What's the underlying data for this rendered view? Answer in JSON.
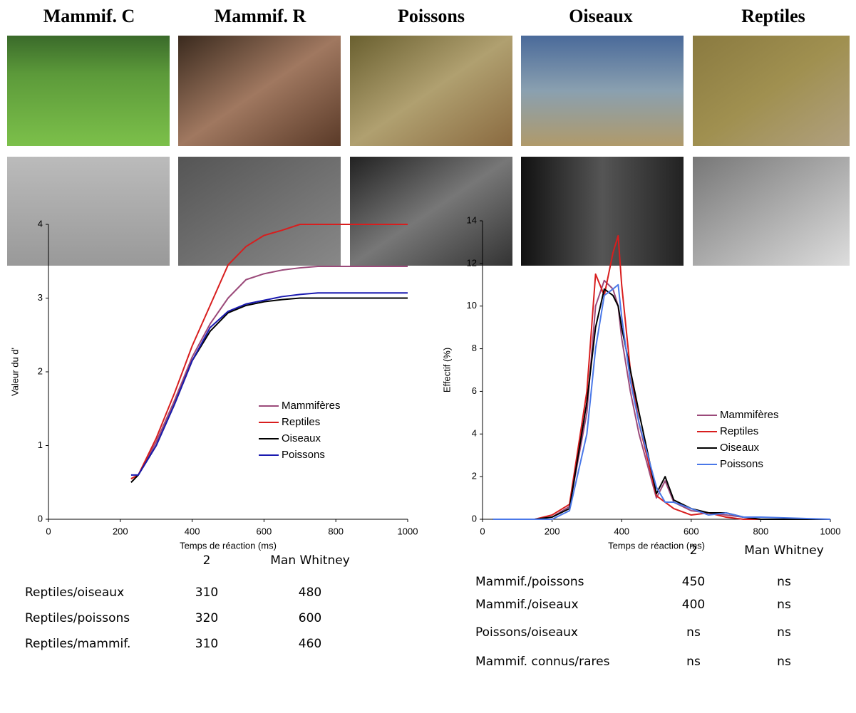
{
  "headers": [
    "Mammif. C",
    "Mammif. R",
    "Poissons",
    "Oiseaux",
    "Reptiles"
  ],
  "chart_data": [
    {
      "type": "line",
      "xlabel": "Temps de réaction (ms)",
      "ylabel": "Valeur du d'",
      "x": [
        230,
        250,
        300,
        350,
        400,
        450,
        500,
        550,
        600,
        650,
        700,
        750,
        800,
        900,
        1000
      ],
      "series": [
        {
          "name": "Mammifères",
          "color": "#9b4a7a",
          "values": [
            0.55,
            0.6,
            1.05,
            1.6,
            2.2,
            2.65,
            3.0,
            3.25,
            3.33,
            3.38,
            3.41,
            3.43,
            3.43,
            3.43,
            3.43
          ]
        },
        {
          "name": "Reptiles",
          "color": "#d81e1e",
          "values": [
            0.55,
            0.6,
            1.1,
            1.7,
            2.35,
            2.9,
            3.45,
            3.7,
            3.85,
            3.92,
            4,
            4,
            4,
            4,
            4
          ]
        },
        {
          "name": "Oiseaux",
          "color": "#000000",
          "values": [
            0.5,
            0.6,
            1.0,
            1.55,
            2.15,
            2.55,
            2.8,
            2.9,
            2.95,
            2.98,
            3.0,
            3.0,
            3.0,
            3.0,
            3.0
          ]
        },
        {
          "name": "Poissons",
          "color": "#1a1ab0",
          "values": [
            0.6,
            0.6,
            1.0,
            1.55,
            2.15,
            2.6,
            2.82,
            2.92,
            2.97,
            3.02,
            3.05,
            3.07,
            3.07,
            3.07,
            3.07
          ]
        }
      ],
      "xlim": [
        0,
        1000
      ],
      "ylim": [
        0,
        4
      ],
      "xticks": [
        0,
        200,
        400,
        600,
        800,
        1000
      ],
      "yticks": [
        0,
        1,
        2,
        3,
        4
      ]
    },
    {
      "type": "line",
      "xlabel": "Temps de réaction (ms)",
      "ylabel": "Effectif (%)",
      "x": [
        30,
        150,
        200,
        250,
        300,
        325,
        350,
        375,
        390,
        400,
        425,
        450,
        500,
        525,
        550,
        600,
        650,
        700,
        750,
        800,
        1000
      ],
      "series": [
        {
          "name": "Mammifères",
          "color": "#9b4a7a",
          "values": [
            0,
            0,
            0.1,
            0.6,
            5,
            10,
            11.2,
            10.8,
            10,
            8.5,
            6,
            4,
            1,
            1.8,
            0.8,
            0.4,
            0.3,
            0.2,
            0.1,
            0,
            0
          ]
        },
        {
          "name": "Reptiles",
          "color": "#d81e1e",
          "values": [
            0,
            0,
            0.2,
            0.7,
            6,
            11.5,
            10.5,
            12.5,
            13.3,
            11,
            7,
            4.5,
            1.1,
            0.8,
            0.5,
            0.2,
            0.3,
            0.1,
            0,
            0,
            0
          ]
        },
        {
          "name": "Oiseaux",
          "color": "#000000",
          "values": [
            0,
            0,
            0.1,
            0.5,
            5.5,
            9,
            10.8,
            10.5,
            10,
            9,
            7,
            5,
            1.2,
            2,
            0.9,
            0.5,
            0.3,
            0.3,
            0.1,
            0,
            0
          ]
        },
        {
          "name": "Poissons",
          "color": "#4a78e8",
          "values": [
            0,
            0,
            0,
            0.4,
            4,
            8,
            10.5,
            10.8,
            11,
            9.5,
            6.5,
            4.5,
            1.5,
            0.8,
            0.8,
            0.5,
            0.2,
            0.3,
            0.1,
            0.1,
            0
          ]
        }
      ],
      "xlim": [
        0,
        1000
      ],
      "ylim": [
        0,
        14
      ],
      "xticks": [
        0,
        200,
        400,
        600,
        800,
        1000
      ],
      "yticks": [
        0,
        2,
        4,
        6,
        8,
        10,
        12,
        14
      ]
    }
  ],
  "tables": [
    {
      "header": [
        "2",
        "Man Whitney"
      ],
      "rows": [
        [
          "Reptiles/oiseaux",
          "310",
          "480"
        ],
        [
          "Reptiles/poissons",
          "320",
          "600"
        ],
        [
          "Reptiles/mammif.",
          "310",
          "460"
        ]
      ]
    },
    {
      "header": [
        "2",
        "Man Whitney"
      ],
      "rows": [
        [
          "Mammif./poissons",
          "450",
          "ns"
        ],
        [
          "Mammif./oiseaux",
          "400",
          "ns"
        ],
        [
          "Poissons/oiseaux",
          "ns",
          "ns"
        ],
        [
          "Mammif. connus/rares",
          "ns",
          "ns"
        ]
      ]
    }
  ]
}
